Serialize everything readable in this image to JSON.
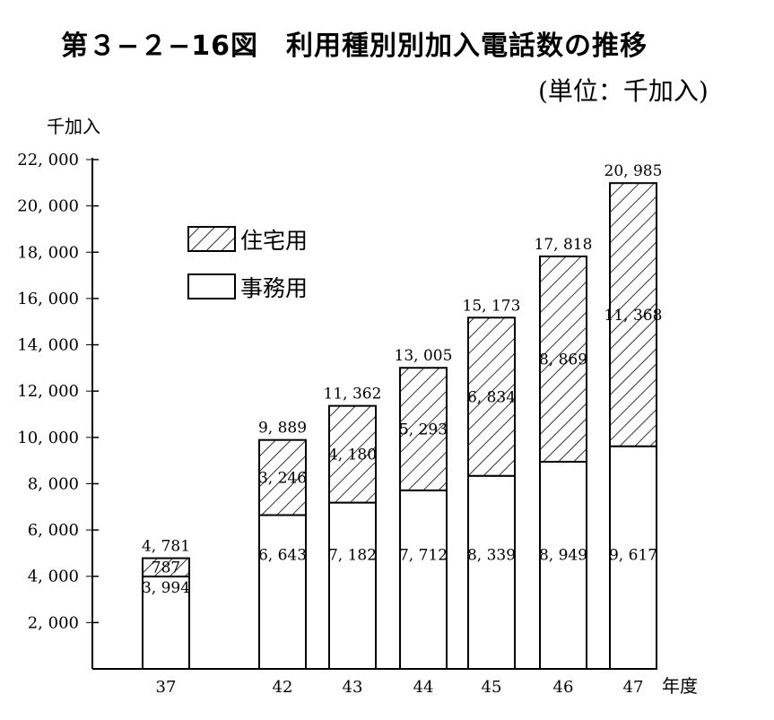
{
  "title": "第３−２−16図　利用種別別加入電話数の推移",
  "unit_note": "(単位：千加入)",
  "chart_data": {
    "type": "bar",
    "stacked": true,
    "categories": [
      "37",
      "42",
      "43",
      "44",
      "45",
      "46",
      "47"
    ],
    "xlabel": "年度",
    "ylabel": "千加入",
    "ylim": [
      0,
      22000
    ],
    "yticks": [
      2000,
      4000,
      6000,
      8000,
      10000,
      12000,
      14000,
      16000,
      18000,
      20000,
      22000
    ],
    "ytick_labels": [
      "2, 000",
      "4, 000",
      "6, 000",
      "8, 000",
      "10, 000",
      "12, 000",
      "14, 000",
      "16, 000",
      "18, 000",
      "20, 000",
      "22, 000"
    ],
    "series": [
      {
        "name": "事務用",
        "values": [
          3994,
          6643,
          7182,
          7712,
          8339,
          8949,
          9617
        ],
        "labels": [
          "3, 994",
          "6, 643",
          "7, 182",
          "7, 712",
          "8, 339",
          "8, 949",
          "9, 617"
        ],
        "pattern": "plain"
      },
      {
        "name": "住宅用",
        "values": [
          787,
          3246,
          4180,
          5293,
          6834,
          8869,
          11368
        ],
        "labels": [
          "787",
          "3, 246",
          "4, 180",
          "5, 293",
          "6, 834",
          "8, 869",
          "11, 368"
        ],
        "pattern": "hatched"
      }
    ],
    "totals": [
      4781,
      9889,
      11362,
      13005,
      15173,
      17818,
      20985
    ],
    "total_labels": [
      "4, 781",
      "9, 889",
      "11, 362",
      "13, 005",
      "15, 173",
      "17, 818",
      "20, 985"
    ],
    "legend": [
      {
        "name": "住宅用",
        "pattern": "hatched"
      },
      {
        "name": "事務用",
        "pattern": "plain"
      }
    ],
    "legend_position": "upper-left",
    "grid": false,
    "colors": {
      "ink": "#000000",
      "fill": "#ffffff"
    }
  }
}
